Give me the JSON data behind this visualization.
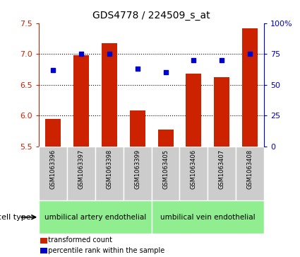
{
  "title": "GDS4778 / 224509_s_at",
  "samples": [
    "GSM1063396",
    "GSM1063397",
    "GSM1063398",
    "GSM1063399",
    "GSM1063405",
    "GSM1063406",
    "GSM1063407",
    "GSM1063408"
  ],
  "bar_values": [
    5.95,
    6.98,
    7.18,
    6.08,
    5.77,
    6.68,
    6.62,
    7.42
  ],
  "dot_values": [
    62,
    75,
    75,
    63,
    60,
    70,
    70,
    75
  ],
  "bar_color": "#cc2200",
  "dot_color": "#0000cc",
  "ylim_left": [
    5.5,
    7.5
  ],
  "ylim_right": [
    0,
    100
  ],
  "yticks_left": [
    5.5,
    6.0,
    6.5,
    7.0,
    7.5
  ],
  "yticks_right": [
    0,
    25,
    50,
    75,
    100
  ],
  "ytick_labels_right": [
    "0",
    "25",
    "50",
    "75",
    "100%"
  ],
  "grid_lines": [
    6.0,
    6.5,
    7.0
  ],
  "group1_label": "umbilical artery endothelial",
  "group2_label": "umbilical vein endothelial",
  "cell_type_label": "cell type",
  "legend_bar_label": "transformed count",
  "legend_dot_label": "percentile rank within the sample",
  "bar_width": 0.55,
  "plot_bg": "#ffffff",
  "tick_area_bg": "#cccccc",
  "group_bg": "#90ee90"
}
